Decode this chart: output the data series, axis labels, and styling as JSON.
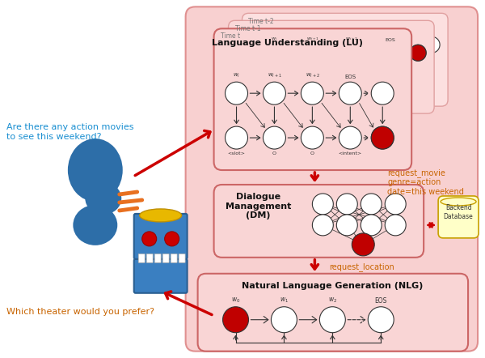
{
  "bg_color": "#f5c0c0",
  "node_white": "#ffffff",
  "node_red": "#c00000",
  "arrow_color": "#cc0000",
  "text_blue": "#1a8fd1",
  "text_orange": "#c86400",
  "text_dark": "#111111",
  "title_lu": "Language Understanding (LU)",
  "title_dm": "Dialogue\nManagement\n(DM)",
  "title_nlg": "Natural Language Generation (NLG)",
  "q1": "Are there any action movies\nto see this weekend?",
  "q2": "Which theater would you prefer?",
  "label_request_movie": "request_movie\ngenre=action\ndate=this weekend",
  "label_request_location": "request_location",
  "label_backend": "Backend\nDatabase",
  "time_t": "Time t",
  "time_t1": "Time t-1",
  "time_t2": "Time t-2"
}
